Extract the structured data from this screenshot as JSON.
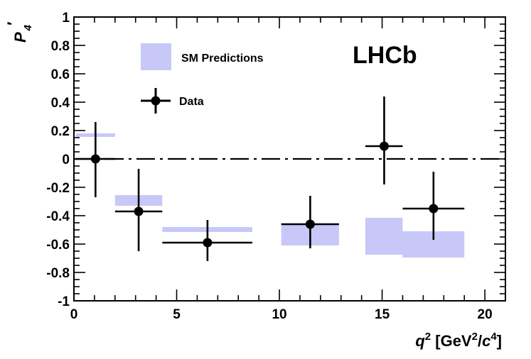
{
  "chart_data": {
    "type": "scatter",
    "experiment_label": "LHCb",
    "ylabel": "P4′",
    "ylabel_main": "P",
    "ylabel_sub": "4",
    "ylabel_prime": "′",
    "xlabel": "q2 [GeV2/c4]",
    "xlabel_parts": {
      "q": "q",
      "sup2": "2",
      "open": " [GeV",
      "sup2b": "2",
      "slash": "/",
      "c": "c",
      "sup4": "4",
      "close": "]"
    },
    "xlim": [
      0,
      21
    ],
    "ylim": [
      -1,
      1
    ],
    "x_ticks": [
      0,
      5,
      10,
      15,
      20
    ],
    "x_tick_labels": [
      "0",
      "5",
      "10",
      "15",
      "20"
    ],
    "y_ticks": [
      1,
      0.8,
      0.6,
      0.4,
      0.2,
      0,
      -0.2,
      -0.4,
      -0.6,
      -0.8,
      -1
    ],
    "y_tick_labels": [
      "1",
      "0.8",
      "0.6",
      "0.4",
      "0.2",
      "0",
      "-0.2",
      "-0.4",
      "-0.6",
      "-0.8",
      "-1"
    ],
    "reference_line": 0,
    "legend": [
      {
        "label": "SM Predictions",
        "kind": "band"
      },
      {
        "label": "Data",
        "kind": "marker"
      }
    ],
    "sm_color": "#c8c8f8",
    "series": [
      {
        "name": "SM Predictions",
        "bands": [
          {
            "x_low": 0.1,
            "x_high": 2.0,
            "y_low": 0.155,
            "y_high": 0.18
          },
          {
            "x_low": 2.0,
            "x_high": 4.3,
            "y_low": -0.33,
            "y_high": -0.255
          },
          {
            "x_low": 4.3,
            "x_high": 8.68,
            "y_low": -0.515,
            "y_high": -0.48
          },
          {
            "x_low": 10.09,
            "x_high": 12.9,
            "y_low": -0.61,
            "y_high": -0.465
          },
          {
            "x_low": 14.18,
            "x_high": 16.0,
            "y_low": -0.675,
            "y_high": -0.415
          },
          {
            "x_low": 16.0,
            "x_high": 19.0,
            "y_low": -0.695,
            "y_high": -0.51
          }
        ]
      },
      {
        "name": "Data",
        "points": [
          {
            "x": 1.05,
            "y": 0.0,
            "x_low": 0.1,
            "x_high": 2.0,
            "y_err_up": 0.26,
            "y_err_down": 0.27
          },
          {
            "x": 3.15,
            "y": -0.37,
            "x_low": 2.0,
            "x_high": 4.3,
            "y_err_up": 0.3,
            "y_err_down": 0.28
          },
          {
            "x": 6.5,
            "y": -0.59,
            "x_low": 4.3,
            "x_high": 8.68,
            "y_err_up": 0.16,
            "y_err_down": 0.13
          },
          {
            "x": 11.5,
            "y": -0.46,
            "x_low": 10.09,
            "x_high": 12.9,
            "y_err_up": 0.2,
            "y_err_down": 0.17
          },
          {
            "x": 15.1,
            "y": 0.09,
            "x_low": 14.18,
            "x_high": 16.0,
            "y_err_up": 0.35,
            "y_err_down": 0.27
          },
          {
            "x": 17.5,
            "y": -0.35,
            "x_low": 16.0,
            "x_high": 19.0,
            "y_err_up": 0.26,
            "y_err_down": 0.22
          }
        ]
      }
    ]
  }
}
